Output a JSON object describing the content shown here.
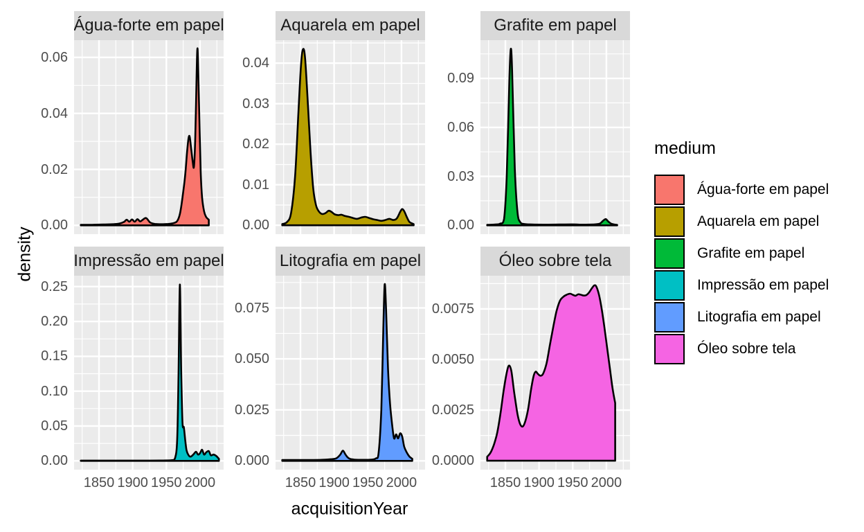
{
  "figure": {
    "background": "#ffffff",
    "panel_bg": "#ebebeb",
    "strip_bg": "#d9d9d9",
    "grid_color": "#ffffff",
    "tick_label_color": "#4d4d4d",
    "outline_color": "#000000"
  },
  "chart_data": {
    "type": "area",
    "subtype": "faceted-density",
    "title": "",
    "xlabel": "acquisitionYear",
    "ylabel": "density",
    "legend_title": "medium",
    "legend_position": "right",
    "grid": true,
    "x_domain": [
      1813,
      2035
    ],
    "x_ticks": [
      1850,
      1900,
      1950,
      2000
    ],
    "x_tick_labels": [
      "1850",
      "1900",
      "1950",
      "2000"
    ],
    "x_minor_ticks": [
      1825,
      1875,
      1925,
      1975,
      2025
    ],
    "facets": [
      {
        "label": "Água-forte em papel",
        "color": "#F8766D",
        "ylim": [
          -0.00315,
          0.06615
        ],
        "y_ticks": [
          0,
          0.02,
          0.04,
          0.06
        ],
        "y_tick_labels": [
          "0.00",
          "0.02",
          "0.04",
          "0.06"
        ],
        "y_minor_ticks": [
          0.01,
          0.03,
          0.05
        ],
        "peak": {
          "x": 1996,
          "y": 0.063
        },
        "points": [
          [
            1823,
            0.0002
          ],
          [
            1840,
            0.0002
          ],
          [
            1856,
            0.0003
          ],
          [
            1870,
            0.0004
          ],
          [
            1880,
            0.0006
          ],
          [
            1887,
            0.0012
          ],
          [
            1891,
            0.002
          ],
          [
            1895,
            0.0013
          ],
          [
            1899,
            0.0021
          ],
          [
            1903,
            0.0013
          ],
          [
            1907,
            0.0022
          ],
          [
            1911,
            0.0014
          ],
          [
            1915,
            0.002
          ],
          [
            1920,
            0.0026
          ],
          [
            1926,
            0.001
          ],
          [
            1933,
            0.0005
          ],
          [
            1943,
            0.0004
          ],
          [
            1953,
            0.0005
          ],
          [
            1961,
            0.0008
          ],
          [
            1966,
            0.0015
          ],
          [
            1970,
            0.004
          ],
          [
            1974,
            0.01
          ],
          [
            1978,
            0.018
          ],
          [
            1981,
            0.027
          ],
          [
            1984,
            0.032
          ],
          [
            1987,
            0.027
          ],
          [
            1989,
            0.023
          ],
          [
            1991,
            0.021
          ],
          [
            1993,
            0.032
          ],
          [
            1995,
            0.055
          ],
          [
            1996,
            0.063
          ],
          [
            1997,
            0.059
          ],
          [
            1999,
            0.038
          ],
          [
            2001,
            0.019
          ],
          [
            2003,
            0.01
          ],
          [
            2006,
            0.005
          ],
          [
            2009,
            0.003
          ],
          [
            2013,
            0.002
          ]
        ]
      },
      {
        "label": "Aquarela em papel",
        "color": "#B79F00",
        "ylim": [
          -0.00218,
          0.04568
        ],
        "y_ticks": [
          0,
          0.01,
          0.02,
          0.03,
          0.04
        ],
        "y_tick_labels": [
          "0.00",
          "0.01",
          "0.02",
          "0.03",
          "0.04"
        ],
        "y_minor_ticks": [
          0.005,
          0.015,
          0.025,
          0.035,
          0.045
        ],
        "peak": {
          "x": 1854,
          "y": 0.0435
        },
        "points": [
          [
            1823,
            0.0003
          ],
          [
            1830,
            0.0008
          ],
          [
            1836,
            0.003
          ],
          [
            1842,
            0.012
          ],
          [
            1847,
            0.028
          ],
          [
            1851,
            0.04
          ],
          [
            1854,
            0.0435
          ],
          [
            1857,
            0.041
          ],
          [
            1861,
            0.03
          ],
          [
            1865,
            0.018
          ],
          [
            1869,
            0.009
          ],
          [
            1873,
            0.005
          ],
          [
            1877,
            0.0035
          ],
          [
            1882,
            0.0028
          ],
          [
            1887,
            0.003
          ],
          [
            1892,
            0.0036
          ],
          [
            1896,
            0.0033
          ],
          [
            1901,
            0.0027
          ],
          [
            1906,
            0.0025
          ],
          [
            1911,
            0.0026
          ],
          [
            1916,
            0.0023
          ],
          [
            1922,
            0.0021
          ],
          [
            1928,
            0.0018
          ],
          [
            1934,
            0.0016
          ],
          [
            1940,
            0.0019
          ],
          [
            1946,
            0.0021
          ],
          [
            1952,
            0.0018
          ],
          [
            1958,
            0.0015
          ],
          [
            1964,
            0.0013
          ],
          [
            1970,
            0.0011
          ],
          [
            1976,
            0.0013
          ],
          [
            1982,
            0.0016
          ],
          [
            1988,
            0.0013
          ],
          [
            1993,
            0.0017
          ],
          [
            1998,
            0.0033
          ],
          [
            2001,
            0.004
          ],
          [
            2004,
            0.0035
          ],
          [
            2008,
            0.002
          ],
          [
            2012,
            0.0008
          ],
          [
            2018,
            0.0003
          ]
        ]
      },
      {
        "label": "Grafite em papel",
        "color": "#00BA38",
        "ylim": [
          -0.0054,
          0.1134
        ],
        "y_ticks": [
          0,
          0.03,
          0.06,
          0.09
        ],
        "y_tick_labels": [
          "0.00",
          "0.03",
          "0.06",
          "0.09"
        ],
        "y_minor_ticks": [
          0.015,
          0.045,
          0.075,
          0.105
        ],
        "peak": {
          "x": 1858,
          "y": 0.108
        },
        "points": [
          [
            1823,
            0.0003
          ],
          [
            1835,
            0.0005
          ],
          [
            1842,
            0.001
          ],
          [
            1848,
            0.004
          ],
          [
            1852,
            0.03
          ],
          [
            1856,
            0.09
          ],
          [
            1858,
            0.108
          ],
          [
            1860,
            0.095
          ],
          [
            1864,
            0.035
          ],
          [
            1868,
            0.008
          ],
          [
            1872,
            0.002
          ],
          [
            1878,
            0.0008
          ],
          [
            1890,
            0.0005
          ],
          [
            1910,
            0.0004
          ],
          [
            1930,
            0.0005
          ],
          [
            1950,
            0.0006
          ],
          [
            1965,
            0.0004
          ],
          [
            1980,
            0.0005
          ],
          [
            1990,
            0.001
          ],
          [
            1995,
            0.0028
          ],
          [
            1999,
            0.0038
          ],
          [
            2003,
            0.0022
          ],
          [
            2007,
            0.001
          ],
          [
            2012,
            0.0005
          ],
          [
            2016,
            0.0003
          ]
        ]
      },
      {
        "label": "Impressão em papel",
        "color": "#00BFC4",
        "ylim": [
          -0.01265,
          0.26565
        ],
        "y_ticks": [
          0,
          0.05,
          0.1,
          0.15,
          0.2,
          0.25
        ],
        "y_tick_labels": [
          "0.00",
          "0.05",
          "0.10",
          "0.15",
          "0.20",
          "0.25"
        ],
        "y_minor_ticks": [
          0.025,
          0.075,
          0.125,
          0.175,
          0.225
        ],
        "peak": {
          "x": 1970,
          "y": 0.253
        },
        "points": [
          [
            1823,
            0.0004
          ],
          [
            1845,
            0.0004
          ],
          [
            1865,
            0.0004
          ],
          [
            1885,
            0.0004
          ],
          [
            1905,
            0.0004
          ],
          [
            1925,
            0.0004
          ],
          [
            1940,
            0.0005
          ],
          [
            1950,
            0.0006
          ],
          [
            1958,
            0.001
          ],
          [
            1963,
            0.004
          ],
          [
            1966,
            0.03
          ],
          [
            1968,
            0.12
          ],
          [
            1970,
            0.253
          ],
          [
            1972,
            0.13
          ],
          [
            1974,
            0.055
          ],
          [
            1976,
            0.048
          ],
          [
            1978,
            0.03
          ],
          [
            1980,
            0.015
          ],
          [
            1983,
            0.008
          ],
          [
            1986,
            0.006
          ],
          [
            1990,
            0.009
          ],
          [
            1994,
            0.013
          ],
          [
            1997,
            0.009
          ],
          [
            2000,
            0.011
          ],
          [
            2003,
            0.016
          ],
          [
            2006,
            0.009
          ],
          [
            2009,
            0.012
          ],
          [
            2013,
            0.014
          ],
          [
            2016,
            0.008
          ],
          [
            2020,
            0.009
          ],
          [
            2024,
            0.007
          ],
          [
            2028,
            0.003
          ]
        ]
      },
      {
        "label": "Litografia em papel",
        "color": "#619CFF",
        "ylim": [
          -0.00433,
          0.09083
        ],
        "y_ticks": [
          0,
          0.025,
          0.05,
          0.075
        ],
        "y_tick_labels": [
          "0.000",
          "0.025",
          "0.050",
          "0.075"
        ],
        "y_minor_ticks": [
          0.0125,
          0.0375,
          0.0625,
          0.0875
        ],
        "peak": {
          "x": 1975,
          "y": 0.0865
        },
        "points": [
          [
            1823,
            0.0004
          ],
          [
            1843,
            0.0004
          ],
          [
            1863,
            0.0004
          ],
          [
            1881,
            0.0005
          ],
          [
            1895,
            0.0008
          ],
          [
            1903,
            0.0012
          ],
          [
            1909,
            0.003
          ],
          [
            1913,
            0.005
          ],
          [
            1917,
            0.003
          ],
          [
            1922,
            0.0012
          ],
          [
            1930,
            0.0006
          ],
          [
            1945,
            0.0005
          ],
          [
            1955,
            0.0006
          ],
          [
            1962,
            0.0012
          ],
          [
            1966,
            0.004
          ],
          [
            1970,
            0.025
          ],
          [
            1973,
            0.065
          ],
          [
            1975,
            0.0865
          ],
          [
            1977,
            0.075
          ],
          [
            1980,
            0.045
          ],
          [
            1983,
            0.028
          ],
          [
            1986,
            0.018
          ],
          [
            1989,
            0.011
          ],
          [
            1992,
            0.013
          ],
          [
            1995,
            0.011
          ],
          [
            1998,
            0.0135
          ],
          [
            2001,
            0.012
          ],
          [
            2004,
            0.007
          ],
          [
            2008,
            0.004
          ],
          [
            2012,
            0.002
          ],
          [
            2016,
            0.001
          ]
        ]
      },
      {
        "label": "Óleo sobre tela",
        "color": "#F564E3",
        "ylim": [
          -0.00044,
          0.00914
        ],
        "y_ticks": [
          0,
          0.0025,
          0.005,
          0.0075
        ],
        "y_tick_labels": [
          "0.0000",
          "0.0025",
          "0.0050",
          "0.0075"
        ],
        "y_minor_ticks": [
          0.00125,
          0.00375,
          0.00625,
          0.00875
        ],
        "peak": {
          "x": 1982,
          "y": 0.0087
        },
        "points": [
          [
            1823,
            0.0002
          ],
          [
            1828,
            0.0004
          ],
          [
            1833,
            0.0008
          ],
          [
            1838,
            0.0014
          ],
          [
            1843,
            0.0024
          ],
          [
            1848,
            0.0036
          ],
          [
            1853,
            0.0045
          ],
          [
            1856,
            0.0047
          ],
          [
            1859,
            0.0044
          ],
          [
            1863,
            0.0034
          ],
          [
            1868,
            0.0023
          ],
          [
            1872,
            0.0018
          ],
          [
            1876,
            0.0017
          ],
          [
            1880,
            0.002
          ],
          [
            1884,
            0.0026
          ],
          [
            1888,
            0.0035
          ],
          [
            1892,
            0.0042
          ],
          [
            1895,
            0.0044
          ],
          [
            1898,
            0.0043
          ],
          [
            1902,
            0.0042
          ],
          [
            1906,
            0.0043
          ],
          [
            1911,
            0.0048
          ],
          [
            1916,
            0.0057
          ],
          [
            1921,
            0.0066
          ],
          [
            1926,
            0.0074
          ],
          [
            1931,
            0.0079
          ],
          [
            1936,
            0.0081
          ],
          [
            1941,
            0.0082
          ],
          [
            1946,
            0.00825
          ],
          [
            1950,
            0.0082
          ],
          [
            1954,
            0.00815
          ],
          [
            1958,
            0.00822
          ],
          [
            1962,
            0.0082
          ],
          [
            1966,
            0.00816
          ],
          [
            1970,
            0.00818
          ],
          [
            1974,
            0.0083
          ],
          [
            1978,
            0.0085
          ],
          [
            1982,
            0.00866
          ],
          [
            1985,
            0.0086
          ],
          [
            1989,
            0.0082
          ],
          [
            1993,
            0.0075
          ],
          [
            1997,
            0.0066
          ],
          [
            2001,
            0.0056
          ],
          [
            2005,
            0.0046
          ],
          [
            2009,
            0.0036
          ],
          [
            2013,
            0.00285
          ]
        ]
      }
    ]
  }
}
